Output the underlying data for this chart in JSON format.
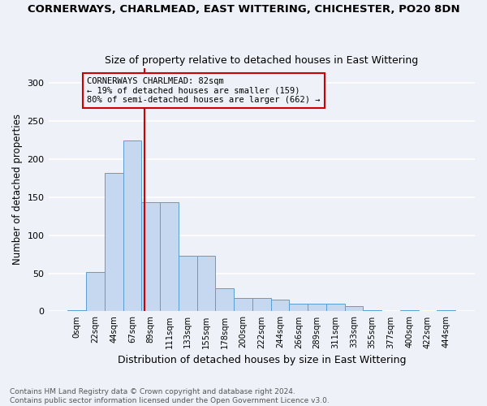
{
  "title": "CORNERWAYS, CHARLMEAD, EAST WITTERING, CHICHESTER, PO20 8DN",
  "subtitle": "Size of property relative to detached houses in East Wittering",
  "xlabel": "Distribution of detached houses by size in East Wittering",
  "ylabel": "Number of detached properties",
  "bar_color": "#c5d8f0",
  "bar_edge_color": "#5a9fd4",
  "background_color": "#eef2f8",
  "grid_color": "#ffffff",
  "annotation_box_color": "#cc0000",
  "vline_color": "#cc0000",
  "annotation_title": "CORNERWAYS CHARLMEAD: 82sqm",
  "annotation_line1": "← 19% of detached houses are smaller (159)",
  "annotation_line2": "80% of semi-detached houses are larger (662) →",
  "footer_line1": "Contains HM Land Registry data © Crown copyright and database right 2024.",
  "footer_line2": "Contains public sector information licensed under the Open Government Licence v3.0.",
  "bin_labels": [
    "0sqm",
    "22sqm",
    "44sqm",
    "67sqm",
    "89sqm",
    "111sqm",
    "133sqm",
    "155sqm",
    "178sqm",
    "200sqm",
    "222sqm",
    "244sqm",
    "266sqm",
    "289sqm",
    "311sqm",
    "333sqm",
    "355sqm",
    "377sqm",
    "400sqm",
    "422sqm",
    "444sqm"
  ],
  "bin_values": [
    2,
    52,
    182,
    225,
    143,
    143,
    73,
    73,
    30,
    18,
    18,
    15,
    10,
    10,
    10,
    7,
    2,
    0,
    2,
    0,
    2
  ],
  "ylim": [
    0,
    320
  ],
  "yticks": [
    0,
    50,
    100,
    150,
    200,
    250,
    300
  ],
  "vline_x": 3.65,
  "figsize": [
    6.0,
    5.0
  ],
  "dpi": 100
}
